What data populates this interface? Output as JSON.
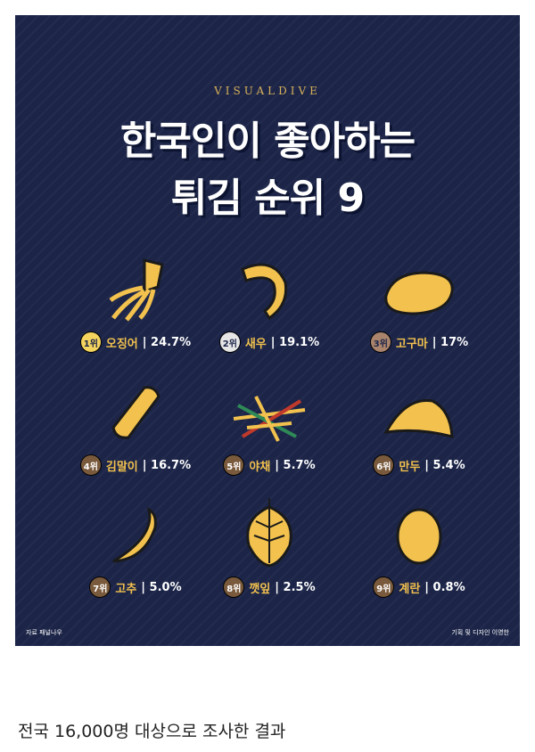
{
  "poster": {
    "brand": "VISUALDIVE",
    "title_line1": "한국인이 좋아하는",
    "title_line2": "튀김 순위 9",
    "items": [
      {
        "rank": "1위",
        "name": "오징어",
        "pct": "| 24.7%",
        "icon": "squid-icon",
        "badge_color": "#f4d35e"
      },
      {
        "rank": "2위",
        "name": "새우",
        "pct": "| 19.1%",
        "icon": "shrimp-icon",
        "badge_color": "#e6e6e6"
      },
      {
        "rank": "3위",
        "name": "고구마",
        "pct": "| 17%",
        "icon": "sweet-potato-icon",
        "badge_color": "#a9836c"
      },
      {
        "rank": "4위",
        "name": "김말이",
        "pct": "| 16.7%",
        "icon": "gimmari-icon",
        "badge_color": "#7a5a3c"
      },
      {
        "rank": "5위",
        "name": "야채",
        "pct": "| 5.7%",
        "icon": "vegetable-icon",
        "badge_color": "#7a5a3c"
      },
      {
        "rank": "6위",
        "name": "만두",
        "pct": "| 5.4%",
        "icon": "dumpling-icon",
        "badge_color": "#7a5a3c"
      },
      {
        "rank": "7위",
        "name": "고추",
        "pct": "| 5.0%",
        "icon": "pepper-icon",
        "badge_color": "#7a5a3c"
      },
      {
        "rank": "8위",
        "name": "깻잎",
        "pct": "| 2.5%",
        "icon": "perilla-leaf-icon",
        "badge_color": "#7a5a3c"
      },
      {
        "rank": "9위",
        "name": "계란",
        "pct": "| 0.8%",
        "icon": "egg-icon",
        "badge_color": "#7a5a3c"
      }
    ],
    "source": "자료 패널나우",
    "credit": "기획 및 디자인 이영한"
  },
  "caption": "전국 16,000명 대상으로 조사한 결과"
}
